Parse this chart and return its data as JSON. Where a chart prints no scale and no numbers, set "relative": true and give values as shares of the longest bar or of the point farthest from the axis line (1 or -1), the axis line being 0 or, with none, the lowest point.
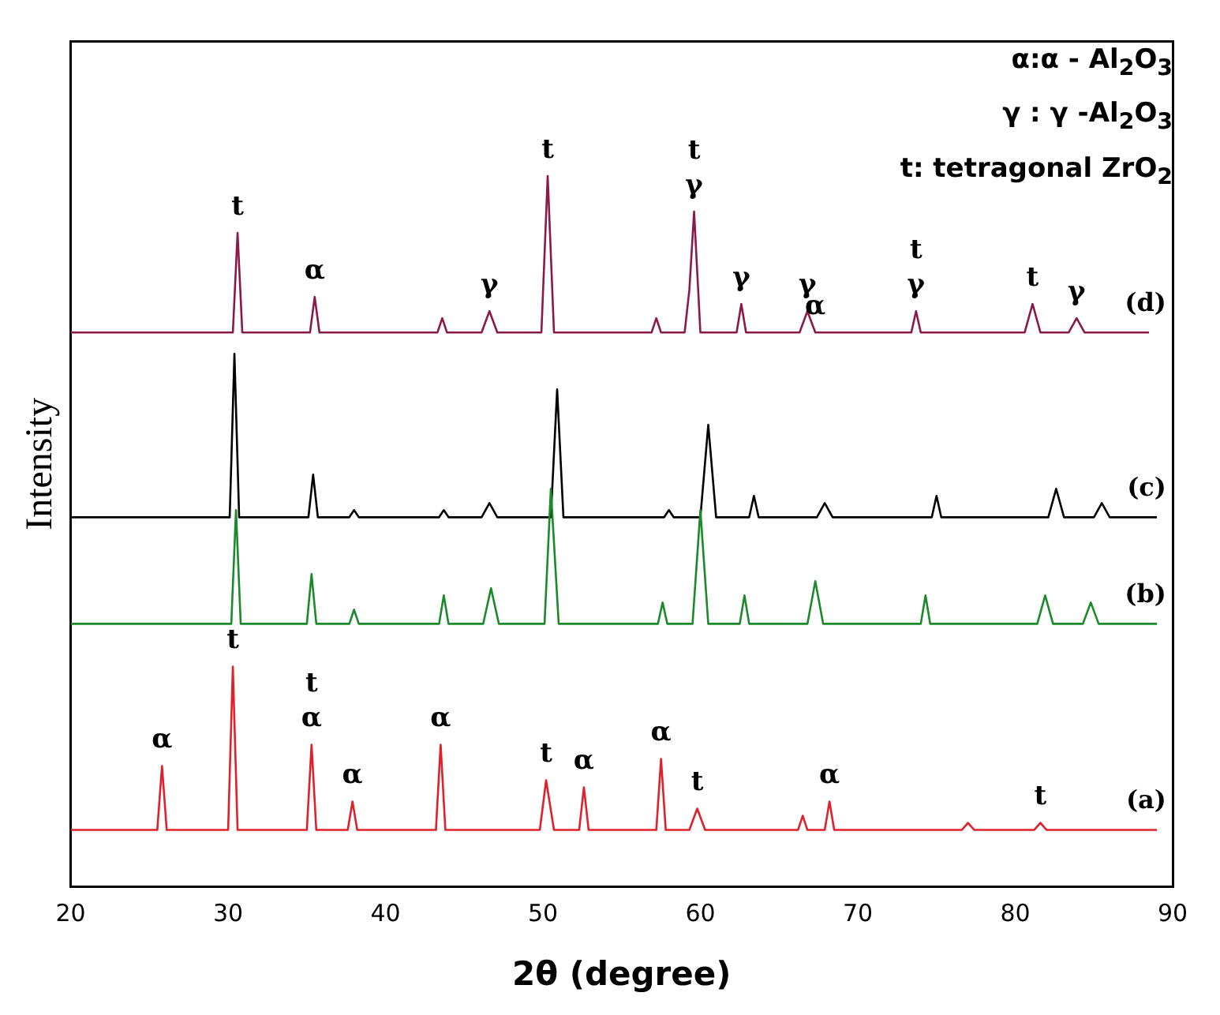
{
  "chart_data": {
    "type": "line",
    "relative": true,
    "xlabel": "2θ (degree)",
    "ylabel": "Intensity",
    "xlim": [
      20,
      90
    ],
    "xticks": [
      20,
      30,
      40,
      50,
      60,
      70,
      80,
      90
    ],
    "grid": false,
    "legend": false,
    "marker": "none",
    "line_style": "solid",
    "series": [
      {
        "name": "(a)",
        "color": "#e0202a",
        "x": [
          20,
          25.5,
          25.8,
          26.1,
          30,
          30.3,
          30.6,
          35,
          35.3,
          35.6,
          37.6,
          37.9,
          38.2,
          43.2,
          43.5,
          43.8,
          49.8,
          50.2,
          50.7,
          52.3,
          52.6,
          52.9,
          57.2,
          57.5,
          57.8,
          59.3,
          59.8,
          60.3,
          66.2,
          66.5,
          66.8,
          67.9,
          68.2,
          68.5,
          76.6,
          77,
          77.4,
          81.2,
          81.6,
          82,
          89
        ],
        "values": [
          0.08,
          0.08,
          0.17,
          0.08,
          0.08,
          0.31,
          0.08,
          0.08,
          0.2,
          0.08,
          0.08,
          0.12,
          0.08,
          0.08,
          0.2,
          0.08,
          0.08,
          0.15,
          0.08,
          0.08,
          0.14,
          0.08,
          0.08,
          0.18,
          0.08,
          0.08,
          0.11,
          0.08,
          0.08,
          0.1,
          0.08,
          0.08,
          0.12,
          0.08,
          0.08,
          0.09,
          0.08,
          0.08,
          0.09,
          0.08,
          0.08
        ]
      },
      {
        "name": "(b)",
        "color": "#1a8a2a",
        "x": [
          20,
          30.2,
          30.5,
          30.8,
          35,
          35.3,
          35.6,
          37.7,
          38,
          38.3,
          43.4,
          43.7,
          44,
          46.2,
          46.7,
          47.2,
          50.1,
          50.5,
          51,
          57.3,
          57.6,
          57.9,
          59.5,
          60,
          60.5,
          62.5,
          62.8,
          63.1,
          66.8,
          67.3,
          67.8,
          74,
          74.3,
          74.6,
          81.4,
          81.9,
          82.4,
          84.3,
          84.8,
          85.3,
          89
        ],
        "values": [
          0.37,
          0.37,
          0.53,
          0.37,
          0.37,
          0.44,
          0.37,
          0.37,
          0.39,
          0.37,
          0.37,
          0.41,
          0.37,
          0.37,
          0.42,
          0.37,
          0.37,
          0.56,
          0.37,
          0.37,
          0.4,
          0.37,
          0.37,
          0.53,
          0.37,
          0.37,
          0.41,
          0.37,
          0.37,
          0.43,
          0.37,
          0.37,
          0.41,
          0.37,
          0.37,
          0.41,
          0.37,
          0.37,
          0.4,
          0.37,
          0.37
        ]
      },
      {
        "name": "(c)",
        "color": "#000000",
        "x": [
          20,
          30.1,
          30.4,
          30.7,
          35.1,
          35.4,
          35.7,
          37.7,
          38,
          38.3,
          43.4,
          43.7,
          44,
          46.1,
          46.6,
          47.1,
          50.5,
          50.9,
          51.3,
          57.7,
          58,
          58.3,
          60,
          60.5,
          61,
          63.1,
          63.4,
          63.7,
          67.4,
          67.9,
          68.4,
          74.7,
          75,
          75.3,
          82.1,
          82.6,
          83.1,
          85,
          85.5,
          86,
          89
        ],
        "values": [
          0.52,
          0.52,
          0.75,
          0.52,
          0.52,
          0.58,
          0.52,
          0.52,
          0.53,
          0.52,
          0.52,
          0.53,
          0.52,
          0.52,
          0.54,
          0.52,
          0.52,
          0.7,
          0.52,
          0.52,
          0.53,
          0.52,
          0.52,
          0.65,
          0.52,
          0.52,
          0.55,
          0.52,
          0.52,
          0.54,
          0.52,
          0.52,
          0.55,
          0.52,
          0.52,
          0.56,
          0.52,
          0.52,
          0.54,
          0.52,
          0.52
        ]
      },
      {
        "name": "(d)",
        "color": "#8b1a4a",
        "x": [
          20,
          30.3,
          30.6,
          30.9,
          35.2,
          35.5,
          35.8,
          43.3,
          43.6,
          43.9,
          46.1,
          46.6,
          47.1,
          49.9,
          50.3,
          50.7,
          56.9,
          57.2,
          57.5,
          59,
          59.3,
          59.6,
          60,
          62.3,
          62.6,
          62.9,
          66.3,
          66.8,
          67.3,
          73.4,
          73.7,
          74,
          80.6,
          81.1,
          81.6,
          83.4,
          83.9,
          84.4,
          88.5
        ],
        "values": [
          0.78,
          0.78,
          0.92,
          0.78,
          0.78,
          0.83,
          0.78,
          0.78,
          0.8,
          0.78,
          0.78,
          0.81,
          0.78,
          0.78,
          1,
          0.78,
          0.78,
          0.8,
          0.78,
          0.78,
          0.84,
          0.95,
          0.78,
          0.78,
          0.82,
          0.78,
          0.78,
          0.81,
          0.78,
          0.78,
          0.81,
          0.78,
          0.78,
          0.82,
          0.78,
          0.78,
          0.8,
          0.78,
          0.78
        ]
      }
    ],
    "annotations": [
      "α:α - Al$_{2}$O$_{3}$",
      "γ : γ -Al$_{2}$O$_{3}$",
      "t: tetragonal ZrO$_{2}$",
      {
        "text": "α",
        "x": 25.8,
        "y": 0.17
      },
      {
        "text": "t",
        "x": 30.3,
        "y": 0.31
      },
      {
        "text": "α",
        "x": 35.3,
        "y": 0.2
      },
      {
        "text": "t",
        "x": 35.3,
        "y": 0.2
      },
      {
        "text": "α",
        "x": 37.9,
        "y": 0.12
      },
      {
        "text": "α",
        "x": 43.5,
        "y": 0.2
      },
      {
        "text": "t",
        "x": 50.2,
        "y": 0.15
      },
      {
        "text": "α",
        "x": 52.6,
        "y": 0.14
      },
      {
        "text": "α",
        "x": 57.5,
        "y": 0.18
      },
      {
        "text": "t",
        "x": 59.8,
        "y": 0.11
      },
      {
        "text": "α",
        "x": 68.2,
        "y": 0.12
      },
      {
        "text": "t",
        "x": 81.6,
        "y": 0.09
      },
      {
        "text": "t",
        "x": 30.6,
        "y": 0.92
      },
      {
        "text": "α",
        "x": 35.5,
        "y": 0.83
      },
      {
        "text": "γ",
        "x": 46.6,
        "y": 0.81
      },
      {
        "text": "t",
        "x": 50.3,
        "y": 1
      },
      {
        "text": "γ",
        "x": 59.6,
        "y": 0.95
      },
      {
        "text": "t",
        "x": 59.6,
        "y": 0.95
      },
      {
        "text": "γ",
        "x": 62.6,
        "y": 0.82
      },
      {
        "text": "γ",
        "x": 66.8,
        "y": 0.81
      },
      {
        "text": "α",
        "x": 67.3,
        "y": 0.78
      },
      {
        "text": "γ",
        "x": 73.7,
        "y": 0.81
      },
      {
        "text": "t",
        "x": 73.7,
        "y": 0.81
      },
      {
        "text": "t",
        "x": 81.1,
        "y": 0.82
      },
      {
        "text": "γ",
        "x": 83.9,
        "y": 0.8
      }
    ]
  }
}
